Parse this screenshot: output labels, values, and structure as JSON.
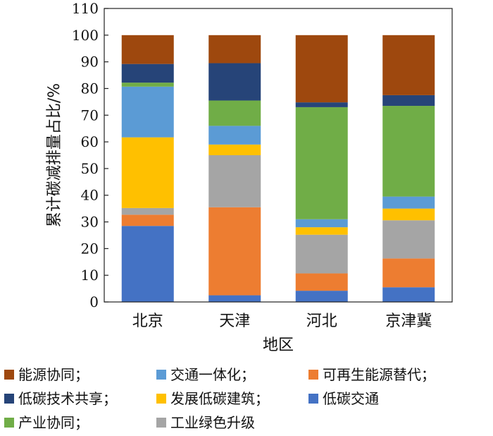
{
  "chart_data": {
    "type": "bar",
    "stacked": true,
    "categories": [
      "北京",
      "天津",
      "河北",
      "京津冀"
    ],
    "xlabel": "地区",
    "ylabel": "累计碳减排量占比/%",
    "ylim": [
      0,
      110
    ],
    "yticks": [
      0,
      10,
      20,
      30,
      40,
      50,
      60,
      70,
      80,
      90,
      100,
      110
    ],
    "grid": false,
    "legend_position": "bottom",
    "series": [
      {
        "name": "低碳交通",
        "color": "#4472C4",
        "values": [
          28.5,
          2.5,
          4.2,
          5.5
        ]
      },
      {
        "name": "可再生能源替代",
        "color": "#ED7D31",
        "values": [
          4.2,
          33.0,
          6.5,
          10.8
        ]
      },
      {
        "name": "工业绿色升级",
        "color": "#A5A5A5",
        "values": [
          2.5,
          19.5,
          14.5,
          14.3
        ]
      },
      {
        "name": "发展低碳建筑",
        "color": "#FFC000",
        "values": [
          26.5,
          4.0,
          2.8,
          4.4
        ]
      },
      {
        "name": "交通一体化",
        "color": "#5B9BD5",
        "values": [
          19.0,
          7.0,
          3.0,
          4.5
        ]
      },
      {
        "name": "产业协同",
        "color": "#70AD47",
        "values": [
          1.5,
          9.5,
          42.0,
          34.0
        ]
      },
      {
        "name": "低碳技术共享",
        "color": "#264478",
        "values": [
          7.0,
          14.0,
          1.8,
          4.0
        ]
      },
      {
        "name": "能源协同",
        "color": "#9E480E",
        "values": [
          10.8,
          10.5,
          25.2,
          22.5
        ]
      }
    ],
    "legend": [
      [
        "能源协同；",
        "交通一体化；",
        "可再生能源替代；"
      ],
      [
        "低碳技术共享；",
        "发展低碳建筑；",
        "低碳交通"
      ],
      [
        "产业协同；",
        "工业绿色升级"
      ]
    ],
    "legend_colors": [
      [
        "#9E480E",
        "#5B9BD5",
        "#ED7D31"
      ],
      [
        "#264478",
        "#FFC000",
        "#4472C4"
      ],
      [
        "#70AD47",
        "#A5A5A5"
      ]
    ]
  }
}
